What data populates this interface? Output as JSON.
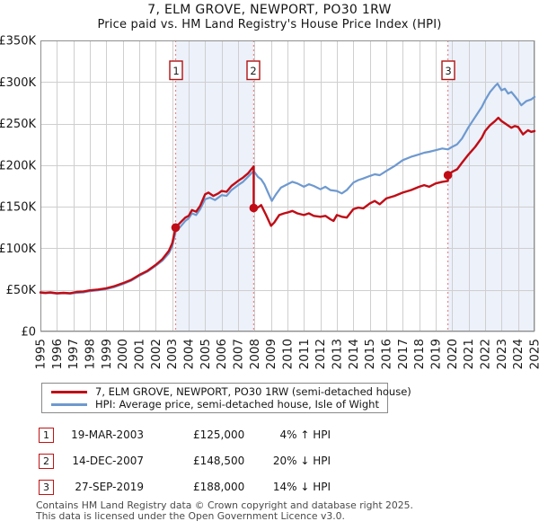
{
  "page": {
    "title": "7, ELM GROVE, NEWPORT, PO30 1RW",
    "subtitle": "Price paid vs. HM Land Registry's House Price Index (HPI)"
  },
  "chart_data": {
    "type": "line",
    "x_range": [
      1995,
      2025
    ],
    "x_tick_years": [
      1995,
      1996,
      1997,
      1998,
      1999,
      2000,
      2001,
      2002,
      2003,
      2004,
      2005,
      2006,
      2007,
      2008,
      2009,
      2010,
      2011,
      2012,
      2013,
      2014,
      2015,
      2016,
      2017,
      2018,
      2019,
      2020,
      2021,
      2022,
      2023,
      2024,
      2025
    ],
    "y_axis": {
      "ylim_k": [
        0,
        350
      ],
      "tick_values_k": [
        0,
        50,
        100,
        150,
        200,
        250,
        300,
        350
      ],
      "tick_labels": [
        "£0",
        "£50K",
        "£100K",
        "£150K",
        "£200K",
        "£250K",
        "£300K",
        "£350K"
      ]
    },
    "series": [
      {
        "name": "7, ELM GROVE, NEWPORT, PO30 1RW (semi-detached house)",
        "color": "#c00c16",
        "width": 2.4,
        "points": [
          [
            1995.0,
            47
          ],
          [
            1995.3,
            46.5
          ],
          [
            1995.6,
            47
          ],
          [
            1996.0,
            46
          ],
          [
            1996.4,
            46.5
          ],
          [
            1996.8,
            46
          ],
          [
            1997.2,
            47.5
          ],
          [
            1997.6,
            48
          ],
          [
            1998.0,
            49.5
          ],
          [
            1998.5,
            50.5
          ],
          [
            1999.0,
            52
          ],
          [
            1999.5,
            54.5
          ],
          [
            2000.0,
            58
          ],
          [
            2000.5,
            62
          ],
          [
            2001.0,
            68
          ],
          [
            2001.5,
            73
          ],
          [
            2002.0,
            80
          ],
          [
            2002.4,
            87
          ],
          [
            2002.8,
            97
          ],
          [
            2003.0,
            106
          ],
          [
            2003.21,
            125
          ],
          [
            2003.5,
            131
          ],
          [
            2003.8,
            137
          ],
          [
            2004.0,
            139
          ],
          [
            2004.2,
            146
          ],
          [
            2004.45,
            144
          ],
          [
            2004.7,
            151
          ],
          [
            2005.0,
            165
          ],
          [
            2005.2,
            167
          ],
          [
            2005.5,
            163
          ],
          [
            2005.8,
            166
          ],
          [
            2006.0,
            169
          ],
          [
            2006.3,
            168
          ],
          [
            2006.6,
            175
          ],
          [
            2007.0,
            181
          ],
          [
            2007.3,
            185
          ],
          [
            2007.6,
            190
          ],
          [
            2007.95,
            198.5
          ],
          [
            2007.95,
            148.5
          ],
          [
            2008.2,
            149
          ],
          [
            2008.4,
            152
          ],
          [
            2008.7,
            140
          ],
          [
            2009.0,
            127
          ],
          [
            2009.2,
            131
          ],
          [
            2009.5,
            140
          ],
          [
            2009.8,
            142
          ],
          [
            2010.0,
            143
          ],
          [
            2010.3,
            145
          ],
          [
            2010.6,
            142
          ],
          [
            2011.0,
            140
          ],
          [
            2011.3,
            142
          ],
          [
            2011.6,
            139
          ],
          [
            2012.0,
            138
          ],
          [
            2012.3,
            139
          ],
          [
            2012.6,
            135
          ],
          [
            2012.8,
            133
          ],
          [
            2013.0,
            140
          ],
          [
            2013.3,
            138
          ],
          [
            2013.6,
            137
          ],
          [
            2014.0,
            147
          ],
          [
            2014.3,
            149
          ],
          [
            2014.6,
            148
          ],
          [
            2015.0,
            154
          ],
          [
            2015.3,
            157
          ],
          [
            2015.6,
            153
          ],
          [
            2016.0,
            160
          ],
          [
            2016.5,
            163
          ],
          [
            2017.0,
            167
          ],
          [
            2017.5,
            170
          ],
          [
            2018.0,
            174
          ],
          [
            2018.3,
            176
          ],
          [
            2018.6,
            174
          ],
          [
            2019.0,
            178
          ],
          [
            2019.4,
            180
          ],
          [
            2019.74,
            181
          ],
          [
            2019.74,
            188
          ],
          [
            2020.0,
            192
          ],
          [
            2020.3,
            195
          ],
          [
            2020.6,
            203
          ],
          [
            2021.0,
            213
          ],
          [
            2021.4,
            222
          ],
          [
            2021.8,
            233
          ],
          [
            2022.0,
            241
          ],
          [
            2022.3,
            248
          ],
          [
            2022.6,
            253
          ],
          [
            2022.8,
            257
          ],
          [
            2023.0,
            253
          ],
          [
            2023.3,
            249
          ],
          [
            2023.6,
            245
          ],
          [
            2023.8,
            247
          ],
          [
            2024.0,
            246
          ],
          [
            2024.3,
            237
          ],
          [
            2024.6,
            242
          ],
          [
            2024.8,
            240
          ],
          [
            2025.0,
            241
          ]
        ]
      },
      {
        "name": "HPI: Average price, semi-detached house, Isle of Wight",
        "color": "#6e99cf",
        "width": 2.2,
        "points": [
          [
            1995.0,
            46.5
          ],
          [
            1995.3,
            46
          ],
          [
            1995.6,
            46.5
          ],
          [
            1996.0,
            45.5
          ],
          [
            1996.4,
            46
          ],
          [
            1996.8,
            45.5
          ],
          [
            1997.2,
            46.5
          ],
          [
            1997.6,
            47
          ],
          [
            1998.0,
            48.5
          ],
          [
            1998.5,
            49.5
          ],
          [
            1999.0,
            51
          ],
          [
            1999.5,
            53.5
          ],
          [
            2000.0,
            57
          ],
          [
            2000.5,
            61
          ],
          [
            2001.0,
            67
          ],
          [
            2001.5,
            72
          ],
          [
            2002.0,
            79
          ],
          [
            2002.4,
            85
          ],
          [
            2002.8,
            94
          ],
          [
            2003.0,
            102
          ],
          [
            2003.21,
            120
          ],
          [
            2003.5,
            126
          ],
          [
            2003.8,
            133
          ],
          [
            2004.0,
            136
          ],
          [
            2004.2,
            142
          ],
          [
            2004.45,
            140
          ],
          [
            2004.7,
            147
          ],
          [
            2005.0,
            159
          ],
          [
            2005.3,
            161
          ],
          [
            2005.6,
            158
          ],
          [
            2006.0,
            164
          ],
          [
            2006.3,
            163
          ],
          [
            2006.6,
            170
          ],
          [
            2007.0,
            176
          ],
          [
            2007.3,
            180
          ],
          [
            2007.6,
            186
          ],
          [
            2007.95,
            193
          ],
          [
            2008.2,
            186
          ],
          [
            2008.4,
            183
          ],
          [
            2008.6,
            177
          ],
          [
            2008.8,
            168
          ],
          [
            2009.05,
            157
          ],
          [
            2009.3,
            165
          ],
          [
            2009.6,
            173
          ],
          [
            2010.0,
            177
          ],
          [
            2010.3,
            180
          ],
          [
            2010.6,
            178
          ],
          [
            2011.0,
            174
          ],
          [
            2011.3,
            177
          ],
          [
            2011.6,
            175
          ],
          [
            2012.0,
            171
          ],
          [
            2012.3,
            174
          ],
          [
            2012.6,
            170
          ],
          [
            2013.0,
            169
          ],
          [
            2013.3,
            166
          ],
          [
            2013.6,
            170
          ],
          [
            2014.0,
            179
          ],
          [
            2014.3,
            182
          ],
          [
            2014.6,
            184
          ],
          [
            2015.0,
            187
          ],
          [
            2015.3,
            189
          ],
          [
            2015.6,
            188
          ],
          [
            2016.0,
            193
          ],
          [
            2016.5,
            199
          ],
          [
            2017.0,
            206
          ],
          [
            2017.5,
            210
          ],
          [
            2018.0,
            213
          ],
          [
            2018.3,
            215
          ],
          [
            2018.6,
            216
          ],
          [
            2019.0,
            218
          ],
          [
            2019.4,
            220
          ],
          [
            2019.74,
            219
          ],
          [
            2020.0,
            222
          ],
          [
            2020.3,
            225
          ],
          [
            2020.6,
            232
          ],
          [
            2021.0,
            246
          ],
          [
            2021.4,
            258
          ],
          [
            2021.8,
            270
          ],
          [
            2022.0,
            278
          ],
          [
            2022.3,
            288
          ],
          [
            2022.6,
            295
          ],
          [
            2022.75,
            298
          ],
          [
            2023.0,
            290
          ],
          [
            2023.2,
            292
          ],
          [
            2023.4,
            286
          ],
          [
            2023.6,
            288
          ],
          [
            2023.8,
            283
          ],
          [
            2024.0,
            278
          ],
          [
            2024.2,
            272
          ],
          [
            2024.5,
            277
          ],
          [
            2024.8,
            279
          ],
          [
            2025.0,
            282
          ]
        ]
      }
    ],
    "sales": [
      {
        "label": "1",
        "year": 2003.21,
        "price_k": 125
      },
      {
        "label": "2",
        "year": 2007.95,
        "price_k": 148.5
      },
      {
        "label": "3",
        "year": 2019.74,
        "price_k": 188
      }
    ],
    "shaded_regions": [
      [
        2003.21,
        2007.95
      ],
      [
        2019.74,
        2025
      ]
    ],
    "colors": {
      "grid": "#cfcfcf",
      "border": "#8f8f8f",
      "dashed": "#ef8585",
      "shade": "#ecf1fa",
      "marker_box_border": "#b01212",
      "marker_text": "#1a1a1a",
      "tick_text": "#1a1a1a"
    }
  },
  "legend": {
    "items": [
      {
        "label": "7, ELM GROVE, NEWPORT, PO30 1RW (semi-detached house)",
        "color": "#c00c16"
      },
      {
        "label": "HPI: Average price, semi-detached house, Isle of Wight",
        "color": "#6e99cf"
      }
    ]
  },
  "sales_table": {
    "rows": [
      {
        "num": "1",
        "date": "19-MAR-2003",
        "price": "£125,000",
        "vs_hpi": "4% ↑ HPI"
      },
      {
        "num": "2",
        "date": "14-DEC-2007",
        "price": "£148,500",
        "vs_hpi": "20% ↓ HPI"
      },
      {
        "num": "3",
        "date": "27-SEP-2019",
        "price": "£188,000",
        "vs_hpi": "14% ↓ HPI"
      }
    ]
  },
  "footer": {
    "line1": "Contains HM Land Registry data © Crown copyright and database right 2025.",
    "line2": "This data is licensed under the Open Government Licence v3.0."
  }
}
